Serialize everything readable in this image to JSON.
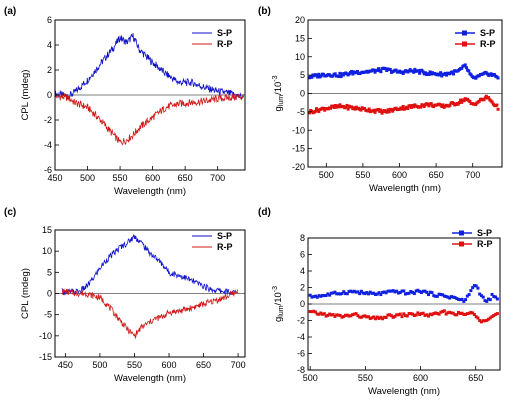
{
  "chart_data": [
    {
      "panel_label": "(a)",
      "type": "line",
      "xlabel": "Wavelength (nm)",
      "ylabel": "CPL (mdeg)",
      "xlim": [
        450,
        742
      ],
      "ylim": [
        -6,
        6
      ],
      "xticks": [
        450,
        500,
        550,
        600,
        650,
        700
      ],
      "yticks": [
        -6,
        -4,
        -2,
        0,
        2,
        4,
        6
      ],
      "legend_position": "top-right",
      "series": [
        {
          "name": "S-P",
          "color": "#1010c8",
          "x": [
            450,
            470,
            480,
            500,
            520,
            540,
            550,
            560,
            570,
            580,
            600,
            620,
            640,
            660,
            680,
            700,
            720,
            740
          ],
          "y": [
            0.1,
            -0.1,
            0.2,
            1.2,
            2.5,
            3.8,
            4.6,
            4.2,
            4.7,
            3.6,
            2.6,
            1.7,
            1.0,
            1.0,
            0.6,
            0.3,
            0.1,
            -0.2
          ]
        },
        {
          "name": "R-P",
          "color": "#d01818",
          "x": [
            450,
            470,
            480,
            500,
            520,
            540,
            550,
            560,
            570,
            580,
            600,
            620,
            640,
            660,
            680,
            700,
            720,
            740
          ],
          "y": [
            -0.1,
            -0.2,
            -0.6,
            -1.0,
            -2.0,
            -3.2,
            -3.8,
            -3.6,
            -3.2,
            -2.6,
            -1.8,
            -1.0,
            -0.7,
            -0.6,
            -0.5,
            -0.3,
            -0.2,
            -0.1
          ]
        }
      ]
    },
    {
      "panel_label": "(b)",
      "type": "scatter",
      "xlabel": "Wavelength (nm)",
      "ylabel": "g_lum/10^-3",
      "ylabel_parts": {
        "base": "g",
        "sub": "lum",
        "mid": "/10",
        "sup": "-3"
      },
      "xlim": [
        475,
        740
      ],
      "ylim": [
        -20,
        20
      ],
      "xticks": [
        500,
        550,
        600,
        650,
        700
      ],
      "yticks": [
        -20,
        -15,
        -10,
        -5,
        0,
        5,
        10,
        15,
        20
      ],
      "legend_position": "top-right",
      "series": [
        {
          "name": "S-P",
          "color": "#1020e0",
          "x": [
            477,
            500,
            520,
            540,
            560,
            580,
            600,
            620,
            640,
            660,
            680,
            690,
            700,
            720,
            735
          ],
          "y": [
            4.5,
            5.2,
            5.0,
            5.8,
            6.0,
            6.5,
            5.8,
            6.2,
            5.5,
            5.2,
            6.0,
            7.5,
            4.0,
            5.5,
            4.5
          ]
        },
        {
          "name": "R-P",
          "color": "#e01010",
          "x": [
            477,
            500,
            520,
            540,
            560,
            580,
            600,
            620,
            640,
            660,
            680,
            690,
            700,
            720,
            735
          ],
          "y": [
            -5.0,
            -4.0,
            -3.5,
            -4.0,
            -4.5,
            -5.0,
            -4.0,
            -3.5,
            -3.0,
            -3.5,
            -2.5,
            -1.5,
            -3.0,
            -1.0,
            -4.0
          ]
        }
      ]
    },
    {
      "panel_label": "(c)",
      "type": "line",
      "xlabel": "Wavelength (nm)",
      "ylabel": "CPL (mdeg)",
      "xlim": [
        435,
        710
      ],
      "ylim": [
        -15,
        15
      ],
      "xticks": [
        450,
        500,
        550,
        600,
        650,
        700
      ],
      "yticks": [
        -15,
        -10,
        -5,
        0,
        5,
        10,
        15
      ],
      "legend_position": "top-right",
      "series": [
        {
          "name": "S-P",
          "color": "#1010c8",
          "x": [
            445,
            460,
            470,
            480,
            490,
            500,
            510,
            520,
            530,
            540,
            550,
            560,
            570,
            580,
            590,
            600,
            620,
            640,
            660,
            680,
            700
          ],
          "y": [
            0.5,
            0.3,
            0.5,
            1.5,
            3.5,
            6.0,
            8.0,
            9.5,
            11.0,
            12.0,
            13.5,
            12.0,
            10.0,
            8.5,
            7.0,
            5.0,
            4.0,
            2.5,
            1.0,
            0.5,
            0.0
          ]
        },
        {
          "name": "R-P",
          "color": "#d01818",
          "x": [
            445,
            460,
            470,
            480,
            490,
            500,
            510,
            520,
            530,
            540,
            550,
            560,
            570,
            580,
            590,
            600,
            620,
            640,
            660,
            680,
            700
          ],
          "y": [
            0.5,
            0.2,
            0.0,
            0.0,
            -0.5,
            -1.0,
            -2.5,
            -4.5,
            -6.5,
            -8.5,
            -10.0,
            -8.0,
            -7.0,
            -6.0,
            -5.5,
            -4.5,
            -4.0,
            -3.0,
            -2.0,
            -1.0,
            0.5
          ]
        }
      ]
    },
    {
      "panel_label": "(d)",
      "type": "scatter",
      "xlabel": "Wavelength (nm)",
      "ylabel": "g_lum/10^-3",
      "ylabel_parts": {
        "base": "g",
        "sub": "lum",
        "mid": "/10",
        "sup": "-3"
      },
      "xlim": [
        498,
        672
      ],
      "ylim": [
        -8,
        8
      ],
      "xticks": [
        500,
        550,
        600,
        650
      ],
      "yticks": [
        -8,
        -6,
        -4,
        -2,
        0,
        2,
        4,
        6,
        8
      ],
      "legend_position": "top-right",
      "series": [
        {
          "name": "S-P",
          "color": "#1020e0",
          "x": [
            500,
            510,
            520,
            530,
            540,
            550,
            560,
            570,
            580,
            590,
            600,
            610,
            620,
            630,
            640,
            645,
            650,
            655,
            660,
            665,
            670
          ],
          "y": [
            0.9,
            1.0,
            1.2,
            1.4,
            1.5,
            1.3,
            1.2,
            1.4,
            1.5,
            1.3,
            1.6,
            1.2,
            1.0,
            0.8,
            0.3,
            1.5,
            2.4,
            1.0,
            0.2,
            1.0,
            0.5
          ]
        },
        {
          "name": "R-P",
          "color": "#e01010",
          "x": [
            500,
            510,
            520,
            530,
            540,
            550,
            560,
            570,
            580,
            590,
            600,
            610,
            620,
            630,
            640,
            645,
            650,
            655,
            660,
            665,
            670
          ],
          "y": [
            -1.0,
            -1.2,
            -1.4,
            -1.5,
            -1.3,
            -1.6,
            -1.8,
            -1.5,
            -1.4,
            -1.3,
            -1.2,
            -1.4,
            -1.0,
            -1.1,
            -1.3,
            -1.0,
            -1.5,
            -2.0,
            -1.8,
            -1.4,
            -1.2
          ]
        }
      ]
    }
  ]
}
